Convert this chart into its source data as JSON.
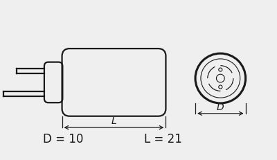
{
  "bg_color": "#efefef",
  "line_color": "#1a1a1a",
  "fig_width": 4.0,
  "fig_height": 2.32,
  "dpi": 100,
  "label_D": "D = 10",
  "label_L": "L = 21",
  "dim_label_L": "L",
  "dim_label_D": "D"
}
